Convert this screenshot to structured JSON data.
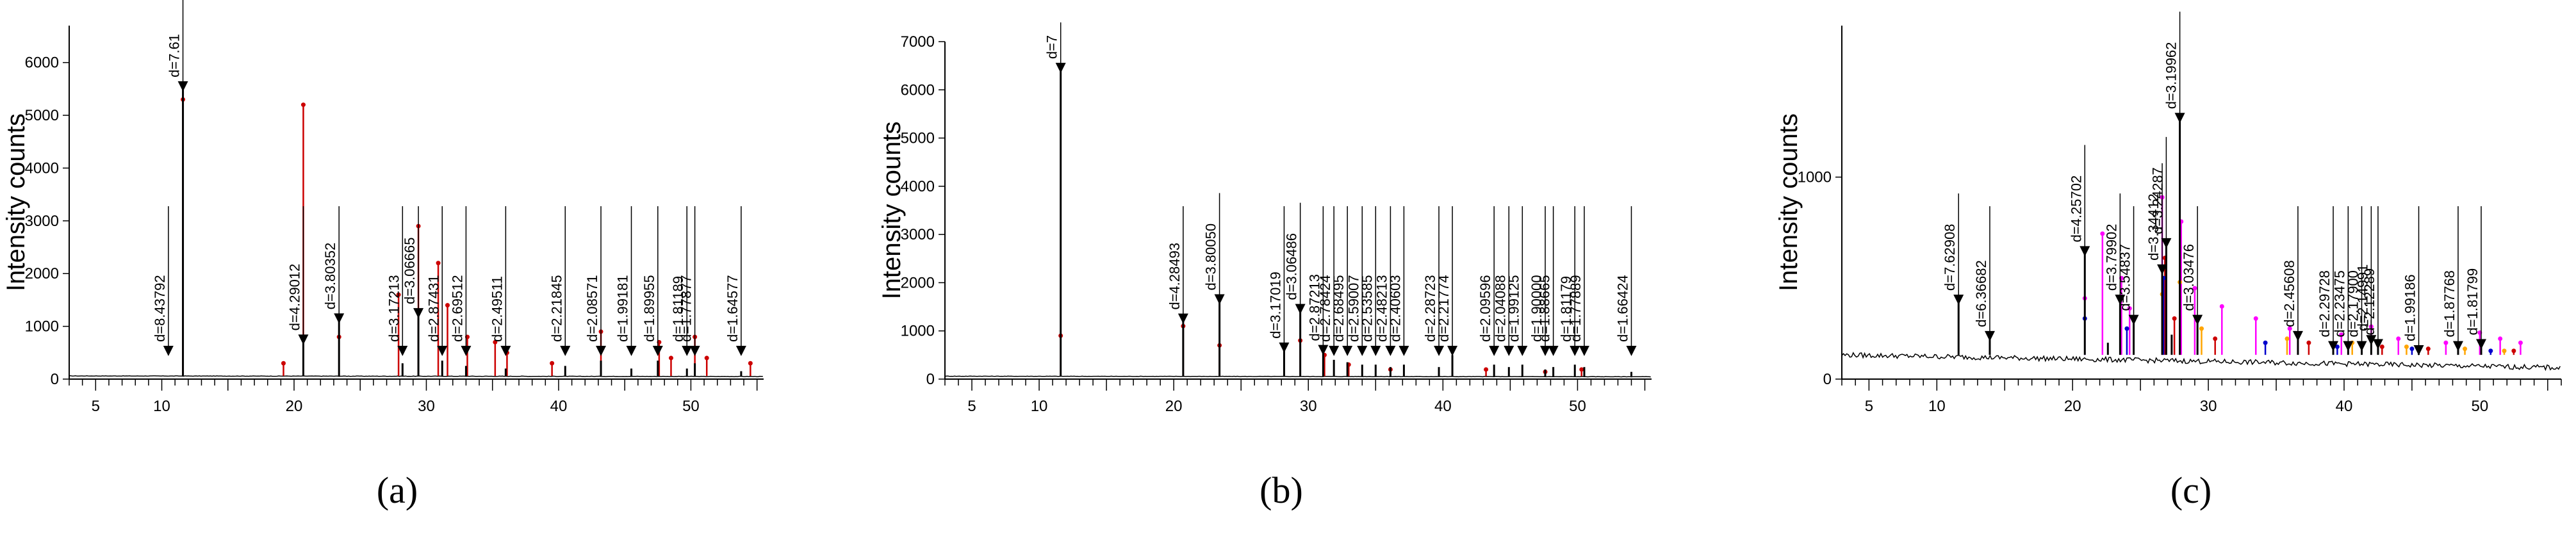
{
  "chart_data": [
    {
      "type": "line",
      "panel_label": "(a)",
      "ylabel": "Intensity counts",
      "xlim": [
        3,
        55.5
      ],
      "ylim": [
        0,
        6700
      ],
      "x_ticks": [
        5,
        10,
        20,
        30,
        40,
        50
      ],
      "y_ticks": [
        0,
        1000,
        2000,
        3000,
        4000,
        5000,
        6000
      ],
      "series": [
        {
          "color": "#000000",
          "x": [
            11.6,
            20.7,
            23.4,
            28.2,
            29.4,
            31.2,
            33.0,
            36.0,
            40.5,
            43.2,
            45.5,
            47.5,
            49.7,
            50.3,
            53.8
          ],
          "values": [
            5500,
            700,
            1100,
            300,
            1200,
            350,
            250,
            200,
            250,
            350,
            200,
            350,
            200,
            300,
            150
          ]
        },
        {
          "color": "#cc0000",
          "x": [
            11.6,
            19.2,
            20.7,
            23.4,
            27.9,
            29.4,
            30.9,
            31.6,
            33.1,
            35.2,
            36.1,
            39.5,
            43.2,
            47.6,
            48.5,
            50.3,
            51.2,
            54.5
          ],
          "values": [
            5300,
            300,
            5200,
            800,
            1600,
            2900,
            2200,
            1400,
            800,
            700,
            500,
            300,
            900,
            700,
            400,
            800,
            400,
            300
          ]
        }
      ],
      "peak_labels": [
        {
          "x": 10.5,
          "label": "d=8.43792"
        },
        {
          "x": 11.6,
          "label": "d=7.61"
        },
        {
          "x": 20.7,
          "label": "d=4.29012"
        },
        {
          "x": 23.4,
          "label": "d=3.80352"
        },
        {
          "x": 28.2,
          "label": "d=3.17213"
        },
        {
          "x": 29.4,
          "label": "d=3.06665"
        },
        {
          "x": 31.2,
          "label": "d=2.87431"
        },
        {
          "x": 33.0,
          "label": "d=2.69512"
        },
        {
          "x": 36.0,
          "label": "d=2.49511"
        },
        {
          "x": 40.5,
          "label": "d=2.21845"
        },
        {
          "x": 43.2,
          "label": "d=2.08571"
        },
        {
          "x": 45.5,
          "label": "d=1.99181"
        },
        {
          "x": 47.5,
          "label": "d=1.89955"
        },
        {
          "x": 49.7,
          "label": "d=1.81189"
        },
        {
          "x": 50.3,
          "label": "d=1.77877"
        },
        {
          "x": 53.8,
          "label": "d=1.64577"
        }
      ]
    },
    {
      "type": "line",
      "panel_label": "(b)",
      "ylabel": "Intensity counts",
      "xlim": [
        3,
        55.5
      ],
      "ylim": [
        0,
        7000
      ],
      "x_ticks": [
        5,
        10,
        20,
        30,
        40,
        50
      ],
      "y_ticks": [
        0,
        1000,
        2000,
        3000,
        4000,
        5000,
        6000,
        7000
      ],
      "series": [
        {
          "color": "#000000",
          "x": [
            11.6,
            20.7,
            23.4,
            28.2,
            29.4,
            31.1,
            31.9,
            32.9,
            34.0,
            35.0,
            36.1,
            37.1,
            39.7,
            40.7,
            43.8,
            44.9,
            45.9,
            47.6,
            48.2,
            49.8,
            50.5,
            54.0
          ],
          "values": [
            6400,
            1200,
            1600,
            600,
            1400,
            550,
            400,
            350,
            300,
            300,
            250,
            300,
            250,
            500,
            300,
            250,
            300,
            200,
            250,
            300,
            250,
            150
          ]
        },
        {
          "color": "#cc0000",
          "x": [
            11.6,
            20.7,
            23.4,
            29.4,
            31.2,
            33.0,
            36.1,
            43.2,
            47.6,
            50.3
          ],
          "values": [
            900,
            1100,
            700,
            800,
            500,
            300,
            200,
            200,
            150,
            200
          ]
        }
      ],
      "peak_labels": [
        {
          "x": 11.6,
          "label": "d=7"
        },
        {
          "x": 20.7,
          "label": "d=4.28493"
        },
        {
          "x": 23.4,
          "label": "d=3.80050"
        },
        {
          "x": 28.2,
          "label": "d=3.17019"
        },
        {
          "x": 29.4,
          "label": "d=3.06486"
        },
        {
          "x": 31.1,
          "label": "d=2.87213"
        },
        {
          "x": 31.9,
          "label": "d=2.78424"
        },
        {
          "x": 32.9,
          "label": "d=2.68495"
        },
        {
          "x": 34.0,
          "label": "d=2.59007"
        },
        {
          "x": 35.0,
          "label": "d=2.53585"
        },
        {
          "x": 36.1,
          "label": "d=2.48213"
        },
        {
          "x": 37.1,
          "label": "d=2.40603"
        },
        {
          "x": 39.7,
          "label": "d=2.28723"
        },
        {
          "x": 40.7,
          "label": "d=2.21774"
        },
        {
          "x": 43.8,
          "label": "d=2.09596"
        },
        {
          "x": 44.9,
          "label": "d=2.04088"
        },
        {
          "x": 45.9,
          "label": "d=1.99125"
        },
        {
          "x": 47.6,
          "label": "d=1.90000"
        },
        {
          "x": 48.2,
          "label": "d=1.88665"
        },
        {
          "x": 49.8,
          "label": "d=1.81179"
        },
        {
          "x": 50.5,
          "label": "d=1.77889"
        },
        {
          "x": 54.0,
          "label": "d=1.66424"
        }
      ]
    },
    {
      "type": "line",
      "panel_label": "(c)",
      "ylabel": "Intensity counts",
      "xlim": [
        3,
        56
      ],
      "ylim": [
        0,
        1750
      ],
      "x_ticks": [
        5,
        10,
        20,
        30,
        40,
        50
      ],
      "y_ticks": [
        0,
        1000
      ],
      "series": [
        {
          "color": "#000000",
          "x": [
            11.6,
            13.9,
            20.9,
            22.6,
            23.5,
            24.5,
            26.6,
            26.9,
            27.3,
            27.9,
            29.2,
            36.6,
            39.2,
            40.3,
            41.3,
            42.0,
            42.5,
            45.5,
            48.4,
            50.1
          ],
          "values": [
            380,
            200,
            620,
            180,
            380,
            280,
            530,
            660,
            220,
            1280,
            280,
            200,
            150,
            150,
            150,
            180,
            160,
            130,
            150,
            160
          ]
        },
        {
          "color": "#ff00ff",
          "x": [
            20.9,
            22.2,
            23.6,
            24.2,
            26.6,
            28.0,
            29.0,
            31.0,
            33.5,
            36.0,
            39.8,
            42.0,
            44.0,
            47.5,
            50.0,
            51.5,
            53.0
          ],
          "values": [
            400,
            720,
            500,
            350,
            900,
            780,
            450,
            360,
            300,
            250,
            220,
            260,
            200,
            180,
            230,
            200,
            180
          ]
        },
        {
          "color": "#ffa500",
          "x": [
            26.6,
            27.9,
            29.5,
            35.8,
            40.6,
            44.6,
            48.9,
            51.8
          ],
          "values": [
            420,
            480,
            250,
            200,
            180,
            160,
            150,
            140
          ]
        },
        {
          "color": "#cc0000",
          "x": [
            26.8,
            27.5,
            30.5,
            37.4,
            42.8,
            46.2,
            52.5
          ],
          "values": [
            600,
            300,
            200,
            180,
            160,
            150,
            140
          ]
        },
        {
          "color": "#0000cc",
          "x": [
            20.9,
            24.0,
            26.7,
            34.2,
            39.5,
            45.0,
            50.8
          ],
          "values": [
            300,
            250,
            500,
            180,
            160,
            150,
            140
          ]
        }
      ],
      "peak_labels": [
        {
          "x": 11.6,
          "label": "d=7.62908"
        },
        {
          "x": 13.9,
          "label": "d=6.36682"
        },
        {
          "x": 20.9,
          "label": "d=4.25702"
        },
        {
          "x": 23.5,
          "label": "d=3.79902"
        },
        {
          "x": 24.5,
          "label": "d=3.54837"
        },
        {
          "x": 26.6,
          "label": "d=3.34412"
        },
        {
          "x": 26.9,
          "label": "d=3.24287"
        },
        {
          "x": 27.9,
          "label": "d=3.19962"
        },
        {
          "x": 29.2,
          "label": "d=3.03476"
        },
        {
          "x": 36.6,
          "label": "d=2.45608"
        },
        {
          "x": 39.2,
          "label": "d=2.29728"
        },
        {
          "x": 40.3,
          "label": "d=2.23475"
        },
        {
          "x": 41.3,
          "label": "d=2.17900"
        },
        {
          "x": 42.0,
          "label": "d=2.14991"
        },
        {
          "x": 42.5,
          "label": "d=2.12289"
        },
        {
          "x": 45.5,
          "label": "d=1.99186"
        },
        {
          "x": 48.4,
          "label": "d=1.87768"
        },
        {
          "x": 50.1,
          "label": "d=1.81799"
        }
      ]
    }
  ]
}
